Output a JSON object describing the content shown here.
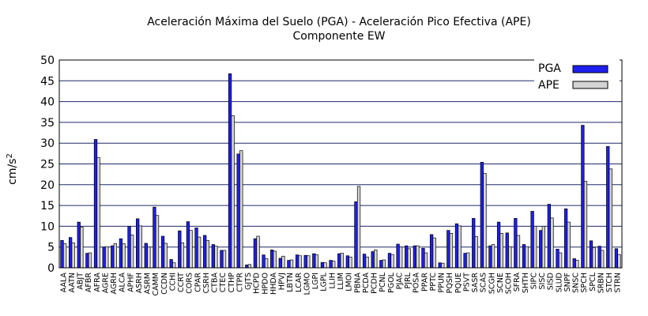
{
  "chart_data": {
    "type": "bar",
    "title_line1": "Aceleración Máxima del Suelo (PGA) -   Aceleración Pico Efectiva (APE)",
    "title_line2": "Componente EW",
    "ylabel": "cm/s",
    "ylabel_exp": "2",
    "ylim": [
      0,
      50
    ],
    "yticks": [
      0,
      5,
      10,
      15,
      20,
      25,
      30,
      35,
      40,
      45,
      50
    ],
    "grid": true,
    "legend_position": "top-right",
    "colors": {
      "PGA": "#1f1ff0",
      "APE": "#d4d4d4",
      "grid": "#1f2a66",
      "border": "#000000"
    },
    "categories": [
      "AALA",
      "AATN",
      "ABJT",
      "AFBR",
      "AFRA",
      "AGRE",
      "AGRH",
      "ALCA",
      "APHF",
      "ASRH",
      "ASRM",
      "CAMM",
      "CCDN",
      "CCHI",
      "CCRT",
      "CORS",
      "CPAR",
      "CSRH",
      "CTBA",
      "CTEC",
      "CTHP",
      "CTPR",
      "GJTS",
      "HCPD",
      "HPDO",
      "HHDA",
      "HPVJ",
      "LBTN",
      "LCAR",
      "LGMO",
      "LGPI",
      "LGPL",
      "LLIH",
      "LLIM",
      "LMOI",
      "PBNA",
      "PCDA",
      "PCDH",
      "PCNL",
      "PGOL",
      "PJAC",
      "PJRL",
      "POSA",
      "PPAR",
      "PPTC",
      "PPUN",
      "PQSH",
      "PQUE",
      "PSVT",
      "SASR",
      "SCAS",
      "SCGH",
      "SCNE",
      "SCOH",
      "SFRA",
      "SHTH",
      "SIPC",
      "SISC",
      "SISD",
      "SLUD",
      "SNPF",
      "SNSC",
      "SPCH",
      "SPCL",
      "SRBN",
      "STCH",
      "STRN"
    ],
    "series": [
      {
        "name": "PGA",
        "values": [
          6.6,
          7.3,
          11.0,
          3.5,
          30.9,
          5.0,
          5.3,
          7.0,
          9.9,
          11.8,
          5.9,
          14.6,
          7.6,
          2.0,
          8.9,
          11.1,
          9.6,
          7.8,
          5.6,
          4.2,
          46.7,
          27.4,
          0.7,
          7.0,
          3.1,
          4.3,
          2.3,
          1.8,
          3.1,
          3.0,
          3.4,
          1.3,
          1.8,
          3.4,
          2.9,
          15.9,
          3.3,
          3.9,
          1.8,
          3.5,
          5.7,
          5.3,
          5.3,
          4.7,
          8.0,
          1.2,
          9.0,
          10.6,
          3.5,
          11.9,
          25.4,
          5.3,
          11.0,
          8.4,
          11.9,
          5.6,
          13.6,
          9.0,
          15.3,
          4.5,
          14.2,
          2.2,
          34.3,
          6.5,
          5.2,
          29.2,
          4.6
        ]
      },
      {
        "name": "APE",
        "values": [
          5.8,
          6.0,
          9.8,
          3.6,
          26.5,
          5.1,
          5.8,
          5.8,
          7.9,
          10.1,
          5.0,
          12.6,
          5.9,
          1.2,
          6.0,
          9.0,
          7.4,
          6.6,
          5.2,
          4.2,
          36.6,
          28.2,
          0.8,
          7.6,
          2.2,
          4.0,
          2.8,
          1.9,
          2.9,
          2.9,
          3.1,
          1.2,
          1.6,
          3.5,
          2.6,
          19.6,
          2.6,
          4.3,
          1.9,
          3.2,
          5.0,
          4.6,
          5.3,
          3.6,
          7.2,
          1.1,
          8.3,
          10.1,
          3.6,
          7.5,
          22.7,
          5.6,
          8.3,
          5.1,
          7.8,
          5.1,
          10.0,
          10.0,
          12.0,
          3.6,
          11.0,
          1.8,
          20.8,
          4.9,
          4.2,
          23.8,
          3.2
        ]
      }
    ]
  }
}
